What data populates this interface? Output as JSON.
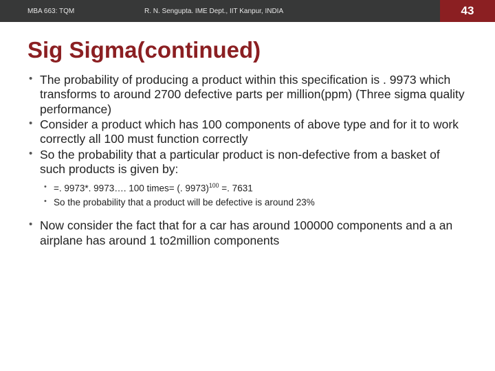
{
  "header": {
    "left": "MBA 663: TQM",
    "center": "R. N. Sengupta. IME Dept., IIT Kanpur, INDIA",
    "slide_number": "43"
  },
  "title": "Sig Sigma(continued)",
  "bullets": {
    "b1": "The probability of producing a product within this specification is . 9973 which transforms to around 2700 defective parts per million(ppm) (Three sigma quality performance)",
    "b2": "Consider a product which has 100 components of above type and for it to work correctly all 100 must function correctly",
    "b3": "So the probability that a particular product is non-defective from a basket of such products is given by:",
    "sub1_pre": "=. 9973*. 9973…. 100 times= (. 9973)",
    "sub1_sup": "100",
    "sub1_post": " =. 7631",
    "sub2": "So the probability that a product will be defective is around 23%",
    "b4": "Now consider the fact that for a car has around 100000 components and a an airplane has around 1 to2million components"
  }
}
